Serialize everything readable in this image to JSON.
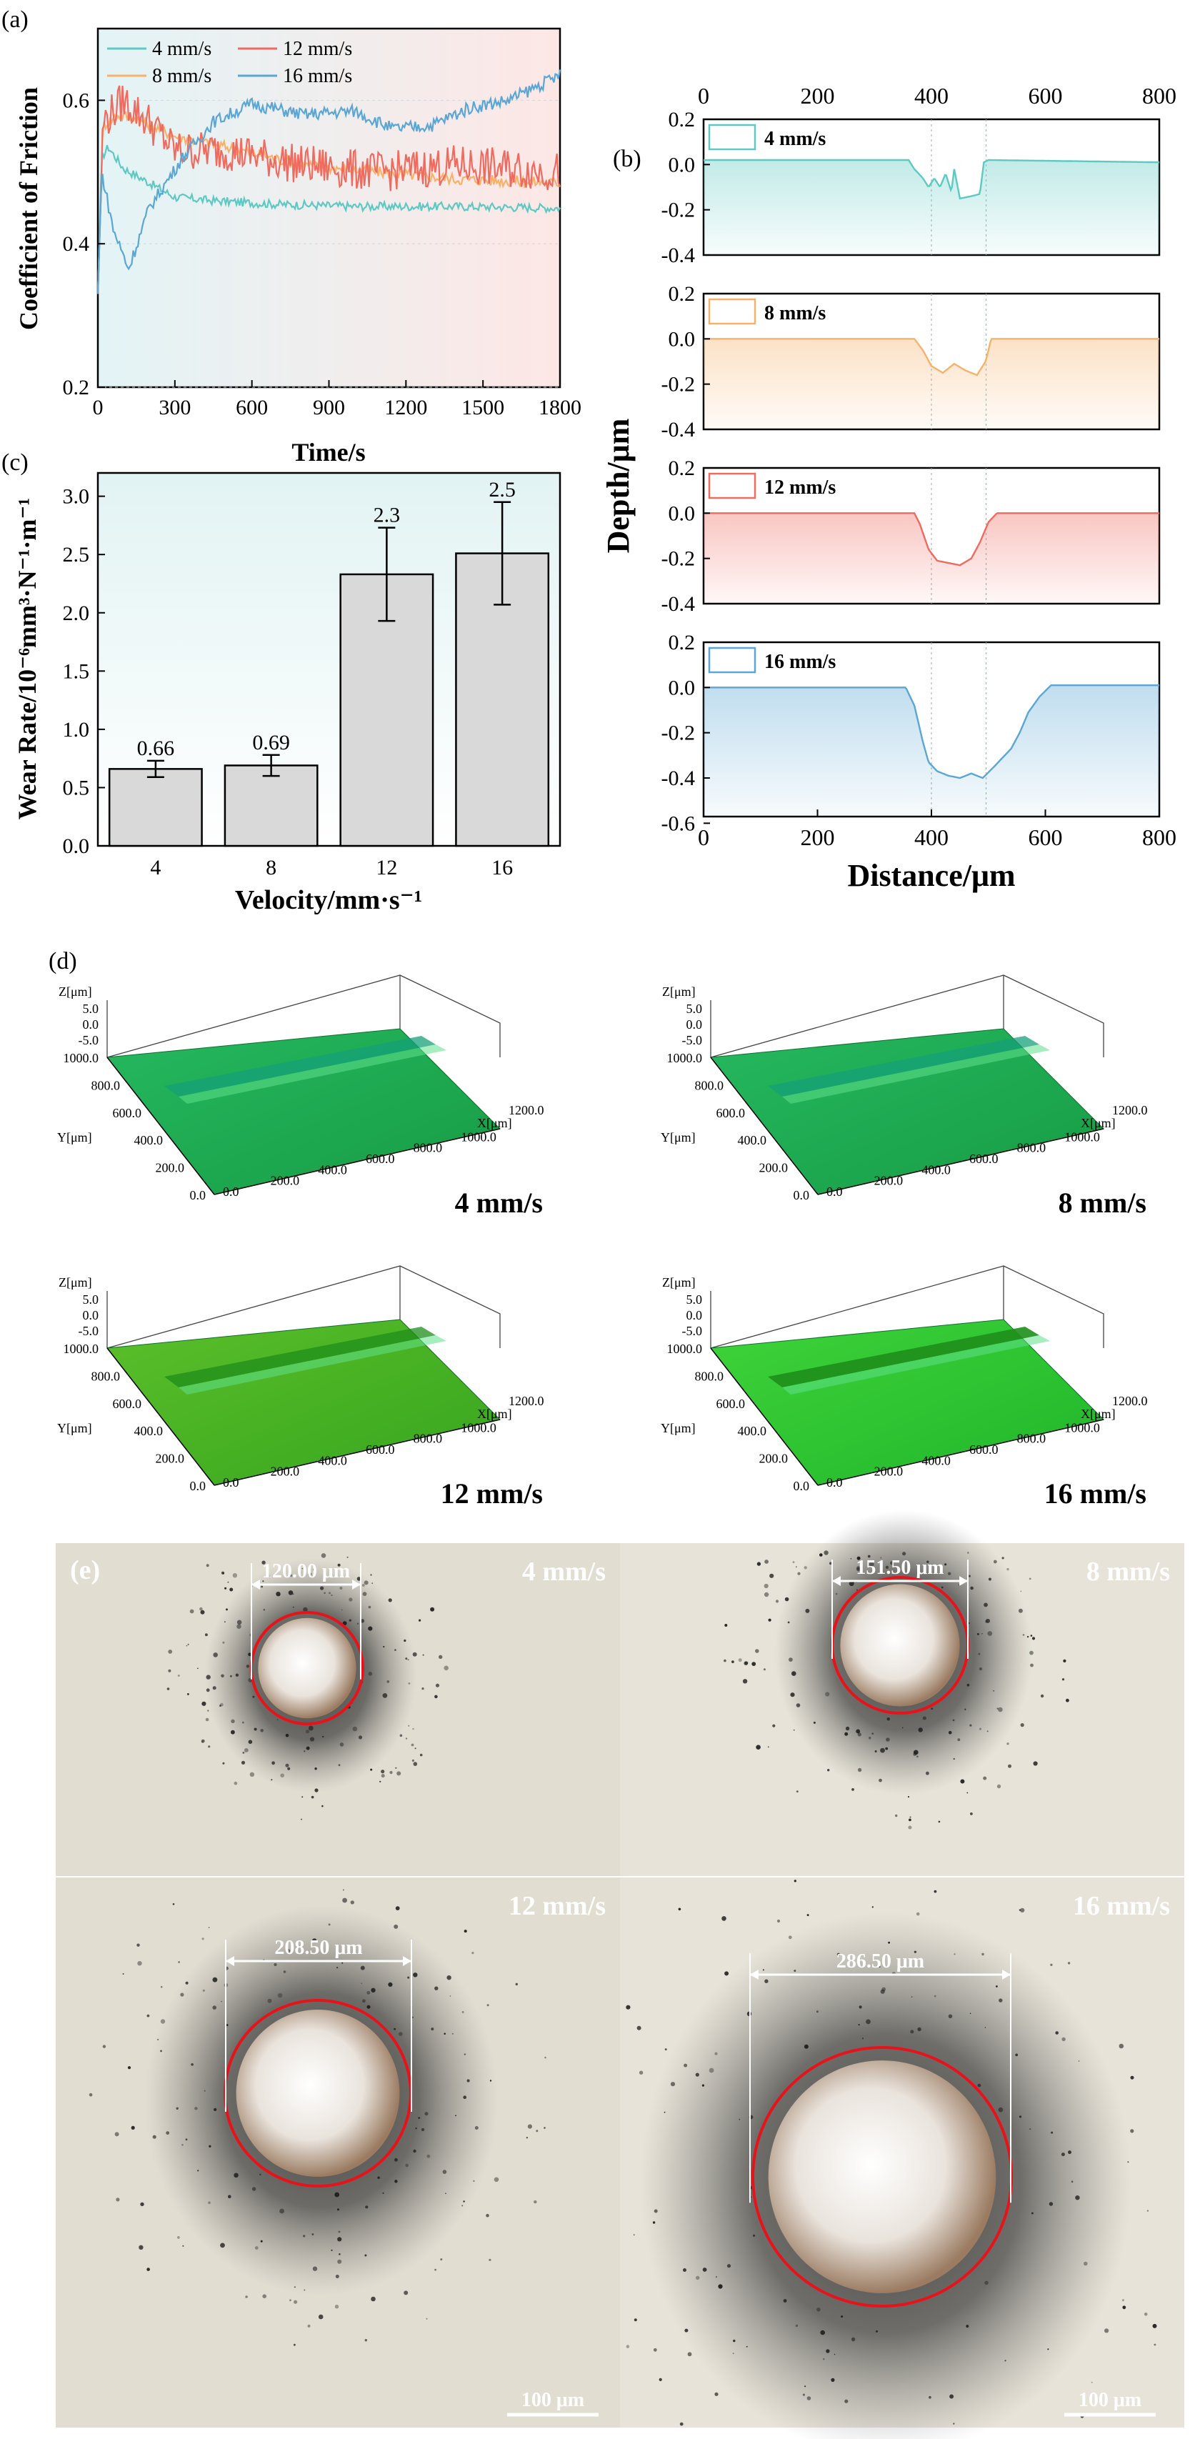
{
  "figure": {
    "panels": {
      "a": "(a)",
      "b": "(b)",
      "c": "(c)",
      "d": "(d)",
      "e": "(e)"
    },
    "colors": {
      "4": "#5ec9c2",
      "8": "#f6b26b",
      "12": "#ef6a5f",
      "16": "#5aa6d4",
      "bar": "#d9d9d9",
      "circle": "#e8131a",
      "surface_green": "#1fae4d",
      "surface_lime": "#3fcb2a"
    }
  },
  "chart_data": [
    {
      "id": "a",
      "type": "line",
      "title": "",
      "xlabel": "Time/s",
      "ylabel": "Coefficient of Friction",
      "xlim": [
        0,
        1800
      ],
      "ylim": [
        0.2,
        0.7
      ],
      "xticks": [
        "0",
        "300",
        "600",
        "900",
        "1200",
        "1500",
        "1800"
      ],
      "yticks": [
        "0.2",
        "0.4",
        "0.6"
      ],
      "legend": [
        "4 mm/s",
        "12 mm/s",
        "8 mm/s",
        "16 mm/s"
      ],
      "series": [
        {
          "name": "4 mm/s",
          "color": "#5ec9c2",
          "noise": 0.006,
          "points": [
            [
              0,
              0.33
            ],
            [
              15,
              0.52
            ],
            [
              40,
              0.535
            ],
            [
              100,
              0.505
            ],
            [
              200,
              0.485
            ],
            [
              300,
              0.465
            ],
            [
              450,
              0.46
            ],
            [
              700,
              0.455
            ],
            [
              1000,
              0.452
            ],
            [
              1400,
              0.452
            ],
            [
              1800,
              0.45
            ]
          ]
        },
        {
          "name": "8 mm/s",
          "color": "#f6b26b",
          "noise": 0.008,
          "points": [
            [
              0,
              0.33
            ],
            [
              20,
              0.565
            ],
            [
              80,
              0.58
            ],
            [
              150,
              0.575
            ],
            [
              300,
              0.55
            ],
            [
              500,
              0.535
            ],
            [
              800,
              0.51
            ],
            [
              1100,
              0.5
            ],
            [
              1400,
              0.49
            ],
            [
              1800,
              0.485
            ]
          ]
        },
        {
          "name": "12 mm/s",
          "color": "#ef6a5f",
          "noise": 0.028,
          "points": [
            [
              0,
              0.33
            ],
            [
              20,
              0.57
            ],
            [
              100,
              0.6
            ],
            [
              200,
              0.57
            ],
            [
              300,
              0.53
            ],
            [
              500,
              0.53
            ],
            [
              800,
              0.51
            ],
            [
              1100,
              0.5
            ],
            [
              1400,
              0.51
            ],
            [
              1800,
              0.5
            ]
          ]
        },
        {
          "name": "16 mm/s",
          "color": "#5aa6d4",
          "noise": 0.009,
          "points": [
            [
              0,
              0.33
            ],
            [
              15,
              0.5
            ],
            [
              60,
              0.42
            ],
            [
              120,
              0.365
            ],
            [
              200,
              0.45
            ],
            [
              330,
              0.52
            ],
            [
              450,
              0.57
            ],
            [
              600,
              0.595
            ],
            [
              800,
              0.58
            ],
            [
              1000,
              0.585
            ],
            [
              1150,
              0.56
            ],
            [
              1300,
              0.565
            ],
            [
              1450,
              0.59
            ],
            [
              1600,
              0.6
            ],
            [
              1800,
              0.635
            ]
          ]
        }
      ]
    },
    {
      "id": "b",
      "type": "line",
      "title": "",
      "xlabel": "Distance/μm",
      "ylabel": "Depth/μm",
      "xlim": [
        0,
        800
      ],
      "xticks": [
        "0",
        "200",
        "400",
        "600",
        "800"
      ],
      "ylim": [
        -0.6,
        0.2
      ],
      "yticks_sub": [
        "0.2",
        "0.0",
        "-0.2",
        "-0.4"
      ],
      "yticks_last": [
        "0.2",
        "0.0",
        "-0.2",
        "-0.4",
        "-0.6"
      ],
      "series": [
        {
          "name": "4 mm/s",
          "color": "#5ec9c2",
          "points": [
            [
              0,
              0.02
            ],
            [
              360,
              0.02
            ],
            [
              370,
              -0.02
            ],
            [
              385,
              -0.06
            ],
            [
              395,
              -0.1
            ],
            [
              405,
              -0.06
            ],
            [
              415,
              -0.1
            ],
            [
              425,
              -0.04
            ],
            [
              435,
              -0.12
            ],
            [
              440,
              -0.02
            ],
            [
              450,
              -0.15
            ],
            [
              470,
              -0.14
            ],
            [
              485,
              -0.13
            ],
            [
              492,
              0.01
            ],
            [
              500,
              0.02
            ],
            [
              800,
              0.01
            ]
          ]
        },
        {
          "name": "8 mm/s",
          "color": "#f6b26b",
          "points": [
            [
              0,
              0.0
            ],
            [
              370,
              0.0
            ],
            [
              385,
              -0.05
            ],
            [
              400,
              -0.12
            ],
            [
              420,
              -0.15
            ],
            [
              440,
              -0.11
            ],
            [
              460,
              -0.14
            ],
            [
              480,
              -0.16
            ],
            [
              495,
              -0.1
            ],
            [
              505,
              0.0
            ],
            [
              800,
              0.0
            ]
          ]
        },
        {
          "name": "12 mm/s",
          "color": "#ef6a5f",
          "points": [
            [
              0,
              0.0
            ],
            [
              370,
              0.0
            ],
            [
              380,
              -0.05
            ],
            [
              395,
              -0.16
            ],
            [
              410,
              -0.21
            ],
            [
              430,
              -0.22
            ],
            [
              450,
              -0.23
            ],
            [
              470,
              -0.2
            ],
            [
              485,
              -0.13
            ],
            [
              500,
              -0.04
            ],
            [
              515,
              0.0
            ],
            [
              800,
              0.0
            ]
          ]
        },
        {
          "name": "16 mm/s",
          "color": "#5aa6d4",
          "points": [
            [
              0,
              0.0
            ],
            [
              355,
              0.0
            ],
            [
              370,
              -0.08
            ],
            [
              385,
              -0.24
            ],
            [
              395,
              -0.33
            ],
            [
              410,
              -0.37
            ],
            [
              430,
              -0.39
            ],
            [
              450,
              -0.4
            ],
            [
              470,
              -0.38
            ],
            [
              490,
              -0.4
            ],
            [
              510,
              -0.35
            ],
            [
              540,
              -0.27
            ],
            [
              555,
              -0.2
            ],
            [
              570,
              -0.11
            ],
            [
              590,
              -0.04
            ],
            [
              610,
              0.01
            ],
            [
              800,
              0.01
            ]
          ]
        }
      ]
    },
    {
      "id": "c",
      "type": "bar",
      "title": "",
      "xlabel": "Velocity/mm·s⁻¹",
      "ylabel": "Wear Rate/10⁻⁶mm³·N⁻¹·m⁻¹",
      "ylim": [
        0,
        3.2
      ],
      "yticks": [
        "0.0",
        "0.5",
        "1.0",
        "1.5",
        "2.0",
        "2.5",
        "3.0"
      ],
      "categories": [
        "4",
        "8",
        "12",
        "16"
      ],
      "values": [
        0.66,
        0.69,
        2.33,
        2.51
      ],
      "errors": [
        0.07,
        0.09,
        0.4,
        0.44
      ],
      "data_labels": [
        "0.66",
        "0.69",
        "2.3",
        "2.5"
      ]
    }
  ],
  "surface_plots": {
    "z_axis_title": "Z[μm]",
    "y_axis_title": "Y[μm]",
    "x_axis_title": "X[μm]",
    "z_ticks": [
      "5.0",
      "0.0",
      "-5.0"
    ],
    "y_ticks": [
      "1000.0",
      "800.0",
      "600.0",
      "400.0",
      "200.0",
      "0.0"
    ],
    "x_ticks": [
      "1200.0",
      "1000.0",
      "800.0",
      "600.0",
      "400.0",
      "200.0",
      "0.0"
    ],
    "labels": [
      "4 mm/s",
      "8 mm/s",
      "12 mm/s",
      "16 mm/s"
    ]
  },
  "micrographs": {
    "tiles": [
      {
        "label": "4 mm/s",
        "measure": "120.00 μm",
        "scale": "100 μm"
      },
      {
        "label": "8 mm/s",
        "measure": "151.50 μm",
        "scale": "100 μm"
      },
      {
        "label": "12 mm/s",
        "measure": "208.50 μm",
        "scale": "100 μm"
      },
      {
        "label": "16 mm/s",
        "measure": "286.50 μm",
        "scale": "100 μm"
      }
    ]
  }
}
